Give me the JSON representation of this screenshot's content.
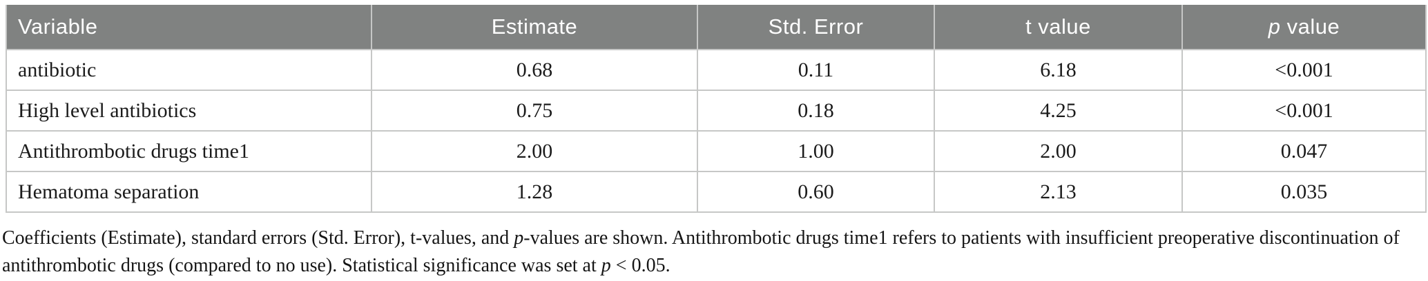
{
  "colors": {
    "header_bg": "#808281",
    "header_text": "#ffffff",
    "body_text": "#1b1b1b",
    "grid_line": "#c6c7c6"
  },
  "table": {
    "headers": [
      {
        "label": "Variable"
      },
      {
        "label": "Estimate"
      },
      {
        "label": "Std. Error"
      },
      {
        "label": "t value"
      },
      {
        "label": "p value",
        "italic_prefix": "p",
        "rest": " value"
      }
    ],
    "rows": [
      {
        "cells": [
          "antibiotic",
          "0.68",
          "0.11",
          "6.18",
          "<0.001"
        ]
      },
      {
        "cells": [
          "High level antibiotics",
          "0.75",
          "0.18",
          "4.25",
          "<0.001"
        ]
      },
      {
        "cells": [
          "Antithrombotic drugs time1",
          "2.00",
          "1.00",
          "2.00",
          "0.047"
        ]
      },
      {
        "cells": [
          "Hematoma separation",
          "1.28",
          "0.60",
          "2.13",
          "0.035"
        ]
      }
    ]
  },
  "footnote": {
    "lines": [
      {
        "segments": [
          {
            "text": "Coefficients (Estimate), standard errors (Std. Error), t-values, and "
          },
          {
            "text": "p",
            "italic": true
          },
          {
            "text": "-values are shown. Antithrombotic drugs time1 refers to patients with insufficient preoperative discontinuation of"
          }
        ]
      },
      {
        "segments": [
          {
            "text": "antithrombotic drugs (compared to no use). Statistical significance was set at "
          },
          {
            "text": "p",
            "italic": true
          },
          {
            "text": " < 0.05."
          }
        ]
      }
    ]
  }
}
